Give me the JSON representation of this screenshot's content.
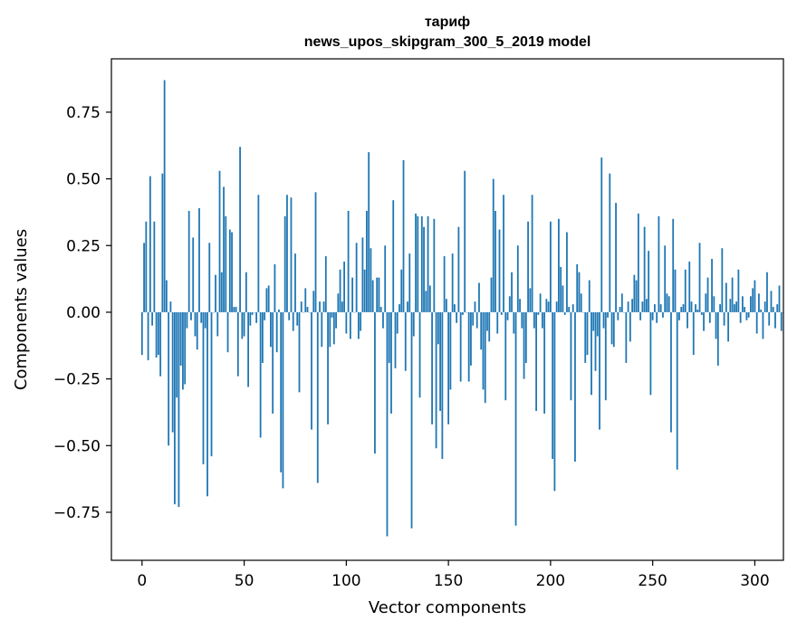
{
  "chart_data": {
    "type": "bar",
    "title": "тариф",
    "subtitle": "news_upos_skipgram_300_5_2019 model",
    "xlabel": "Vector components",
    "ylabel": "Components values",
    "xlim": [
      -15,
      314
    ],
    "ylim": [
      -0.93,
      0.95
    ],
    "xticks": [
      0,
      50,
      100,
      150,
      200,
      250,
      300
    ],
    "xtick_labels": [
      "0",
      "50",
      "100",
      "150",
      "200",
      "250",
      "300"
    ],
    "yticks": [
      -0.75,
      -0.5,
      -0.25,
      0.0,
      0.25,
      0.5,
      0.75
    ],
    "ytick_labels": [
      "−0.75",
      "−0.50",
      "−0.25",
      "0.00",
      "0.25",
      "0.50",
      "0.75"
    ],
    "bar_color": "#1f77b4",
    "values": [
      -0.16,
      0.26,
      0.34,
      -0.18,
      0.51,
      -0.05,
      0.34,
      -0.17,
      -0.16,
      -0.24,
      0.52,
      0.87,
      0.12,
      -0.5,
      0.04,
      -0.45,
      -0.72,
      -0.32,
      -0.73,
      -0.2,
      -0.29,
      -0.27,
      -0.06,
      0.38,
      -0.03,
      0.28,
      -0.09,
      -0.14,
      0.39,
      -0.04,
      -0.57,
      -0.06,
      -0.69,
      0.26,
      -0.54,
      0.0,
      0.14,
      -0.09,
      0.53,
      0.15,
      0.47,
      0.36,
      -0.15,
      0.31,
      0.3,
      0.02,
      0.02,
      -0.24,
      0.62,
      -0.1,
      -0.09,
      0.15,
      -0.28,
      -0.05,
      -0.01,
      0.0,
      -0.04,
      0.44,
      -0.47,
      -0.19,
      -0.03,
      0.09,
      0.1,
      -0.13,
      -0.38,
      0.18,
      -0.15,
      0.01,
      -0.6,
      -0.66,
      0.36,
      0.44,
      -0.03,
      0.43,
      -0.07,
      0.22,
      -0.05,
      -0.3,
      0.04,
      0.0,
      0.09,
      0.02,
      0.0,
      -0.44,
      0.08,
      0.45,
      -0.64,
      0.04,
      -0.13,
      0.04,
      0.21,
      -0.42,
      -0.13,
      -0.02,
      -0.12,
      -0.06,
      0.07,
      0.16,
      0.04,
      0.19,
      -0.08,
      0.38,
      -0.1,
      0.13,
      0.0,
      0.26,
      -0.1,
      -0.07,
      0.28,
      0.16,
      0.38,
      0.6,
      0.24,
      0.12,
      -0.53,
      0.13,
      0.13,
      0.02,
      -0.06,
      0.25,
      -0.84,
      -0.19,
      -0.38,
      0.42,
      -0.21,
      -0.08,
      0.03,
      0.16,
      0.57,
      -0.22,
      0.04,
      0.22,
      -0.81,
      -0.09,
      0.37,
      0.36,
      -0.32,
      0.36,
      0.32,
      0.08,
      0.36,
      0.1,
      -0.42,
      0.35,
      -0.51,
      -0.12,
      -0.37,
      -0.55,
      0.21,
      0.05,
      -0.42,
      -0.29,
      0.22,
      0.03,
      -0.04,
      0.32,
      -0.26,
      -0.01,
      0.53,
      0.0,
      -0.26,
      -0.2,
      -0.05,
      0.04,
      -0.06,
      0.11,
      -0.14,
      -0.29,
      -0.34,
      -0.07,
      -0.11,
      0.13,
      0.5,
      0.38,
      -0.08,
      0.31,
      -0.01,
      0.44,
      -0.33,
      -0.03,
      0.06,
      0.15,
      -0.08,
      -0.8,
      0.25,
      0.05,
      -0.06,
      -0.25,
      -0.19,
      0.34,
      0.09,
      0.44,
      -0.06,
      -0.37,
      -0.01,
      0.07,
      -0.06,
      -0.38,
      0.05,
      0.04,
      0.34,
      -0.55,
      -0.67,
      0.04,
      0.35,
      0.17,
      0.1,
      -0.01,
      0.3,
      0.02,
      -0.33,
      0.03,
      -0.56,
      0.18,
      0.15,
      0.07,
      0.0,
      -0.19,
      -0.16,
      0.12,
      -0.31,
      -0.07,
      -0.22,
      -0.09,
      -0.44,
      0.58,
      -0.06,
      -0.33,
      -0.02,
      0.52,
      -0.12,
      -0.13,
      0.41,
      -0.03,
      0.02,
      0.07,
      0.0,
      -0.19,
      0.04,
      -0.11,
      0.05,
      0.14,
      0.12,
      0.37,
      -0.03,
      0.04,
      0.32,
      0.05,
      0.23,
      -0.31,
      -0.03,
      0.03,
      -0.04,
      0.36,
      0.03,
      -0.02,
      0.25,
      0.07,
      0.06,
      -0.45,
      0.35,
      0.16,
      -0.59,
      -0.03,
      0.02,
      0.03,
      0.16,
      -0.06,
      0.19,
      0.04,
      -0.16,
      0.03,
      0.01,
      0.26,
      -0.01,
      -0.07,
      0.07,
      0.13,
      -0.04,
      0.2,
      0.06,
      -0.1,
      -0.2,
      0.03,
      0.24,
      -0.05,
      0.11,
      -0.11,
      0.05,
      0.13,
      0.03,
      0.04,
      0.16,
      -0.04,
      0.06,
      0.02,
      -0.03,
      -0.02,
      0.06,
      0.09,
      0.12,
      -0.08,
      0.07,
      0.01,
      -0.1,
      0.04,
      0.15,
      -0.05,
      0.08,
      0.02,
      -0.06,
      0.03,
      0.1,
      -0.07,
      0.0
    ]
  }
}
